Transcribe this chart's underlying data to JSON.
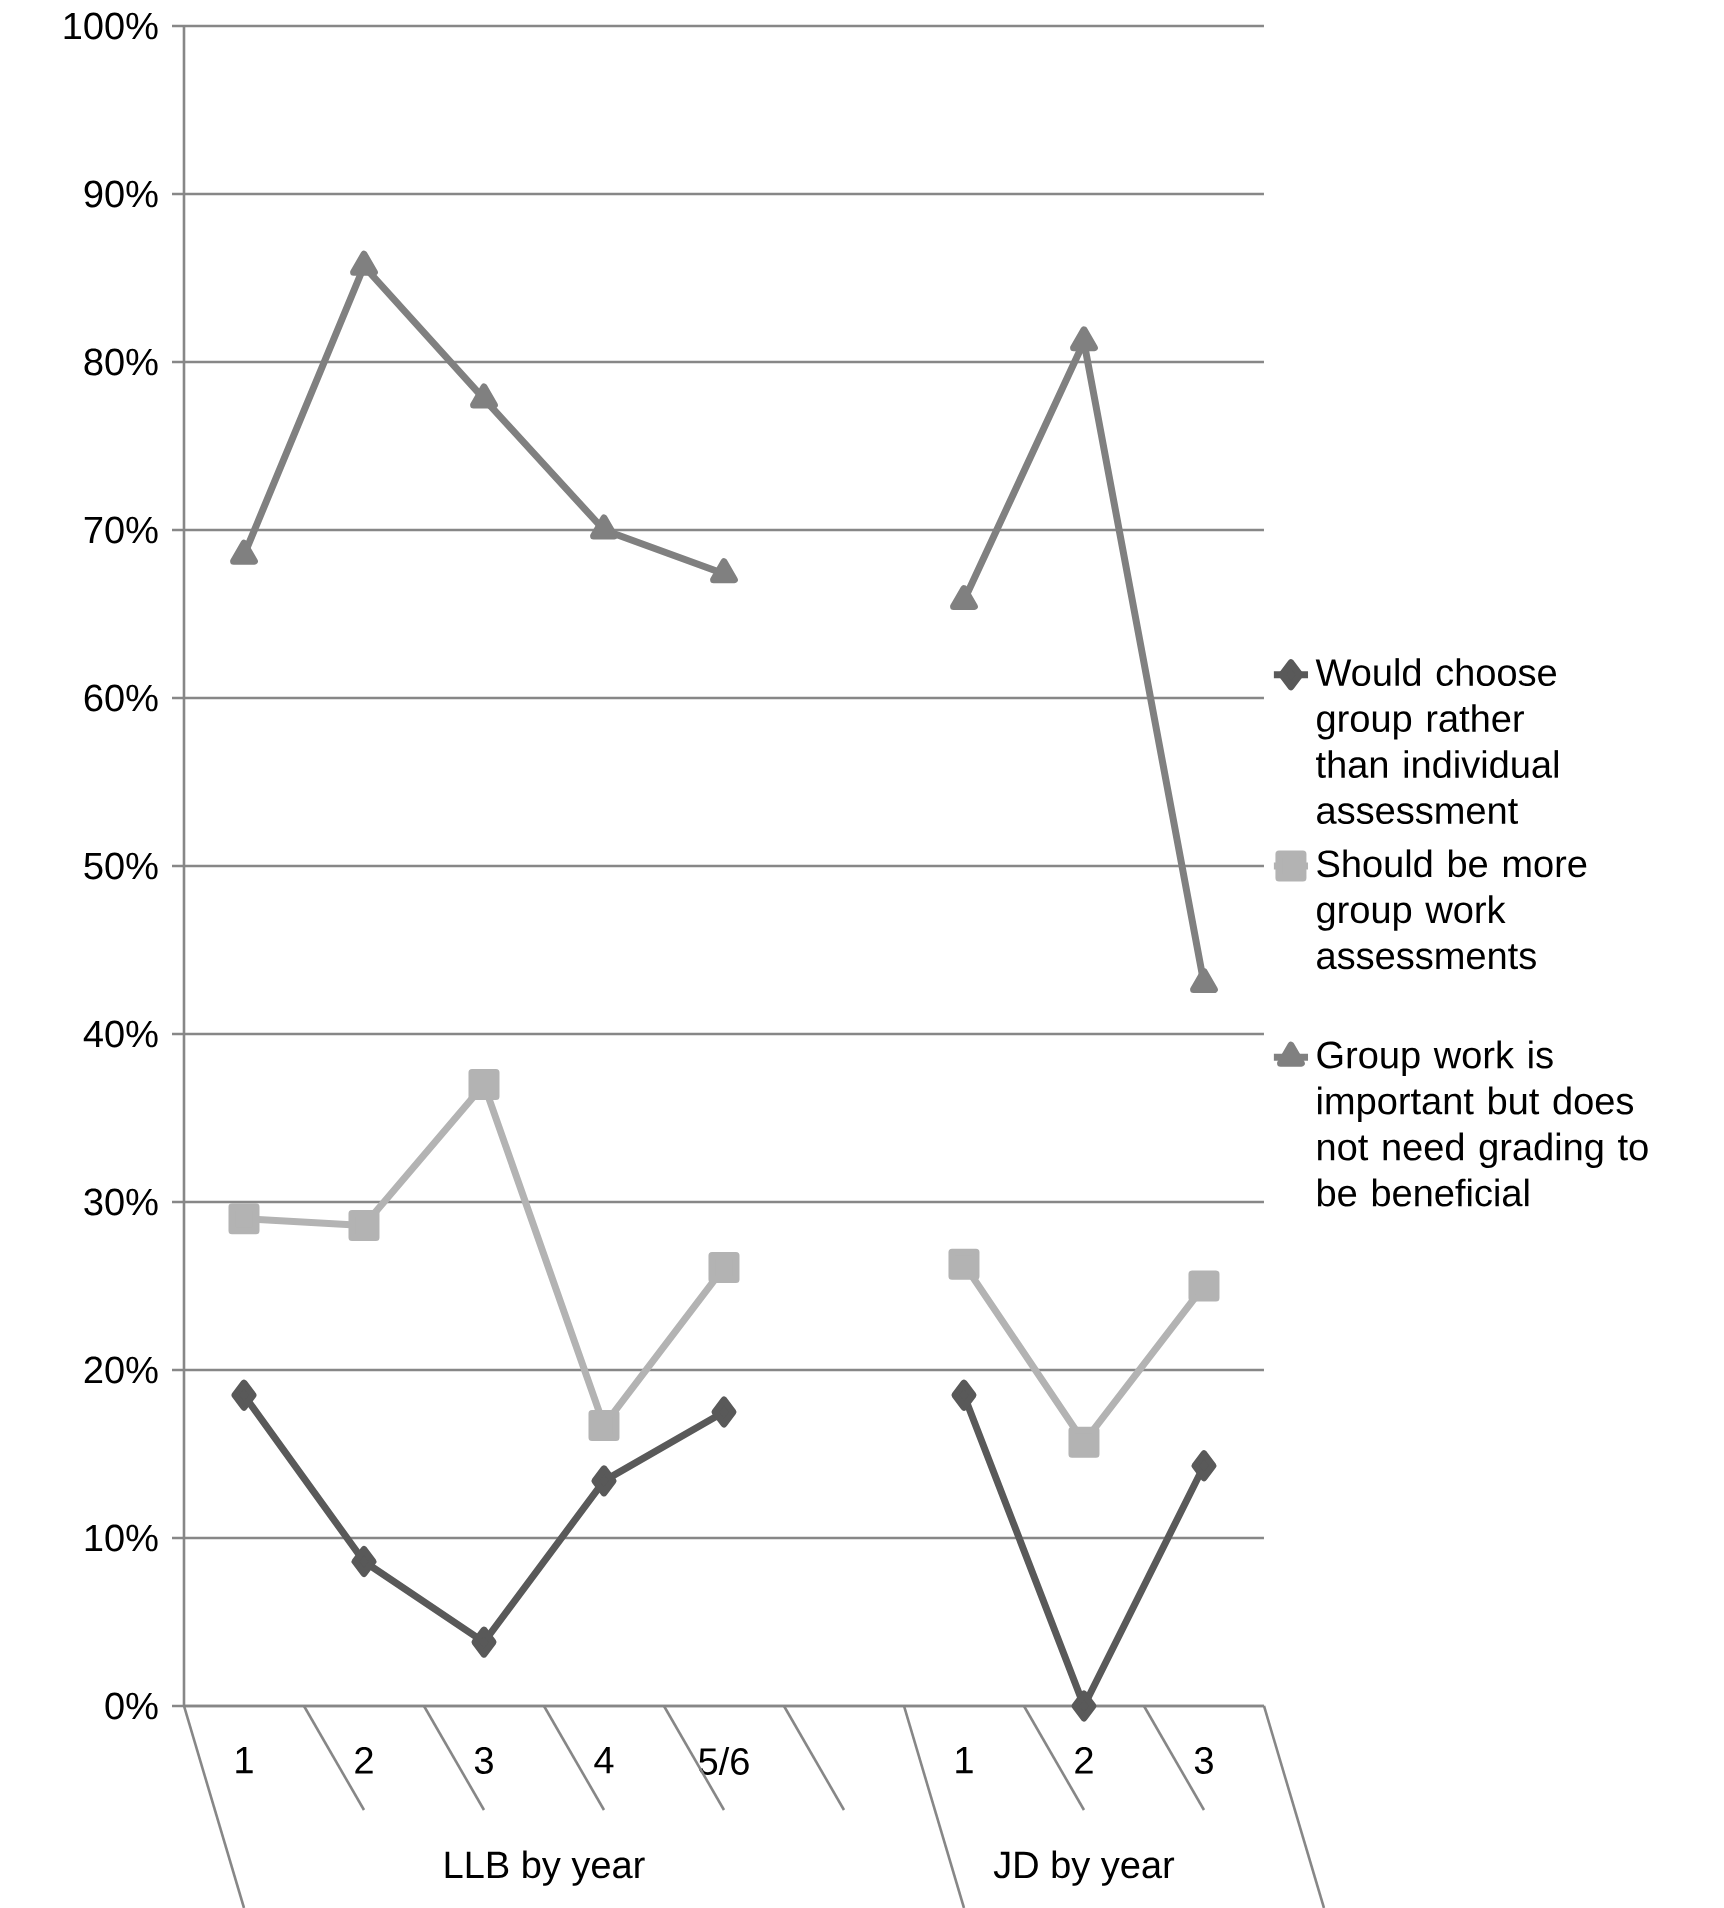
{
  "chart_data": {
    "type": "line",
    "categories": [
      "1",
      "2",
      "3",
      "4",
      "5/6",
      null,
      "1",
      "2",
      "3"
    ],
    "series": [
      {
        "name": "Would choose group rather than individual assessment",
        "color": "#595959",
        "marker": "diamond",
        "values": [
          18.5,
          8.6,
          3.8,
          13.4,
          17.5,
          null,
          18.5,
          0,
          14.3
        ]
      },
      {
        "name": "Should be more group work assessments",
        "color": "#b3b3b3",
        "marker": "square",
        "values": [
          29,
          28.6,
          37,
          16.7,
          26.1,
          null,
          26.3,
          15.7,
          25
        ]
      },
      {
        "name": "Group work is important but does not need grading to be beneficial",
        "color": "#808080",
        "marker": "triangle",
        "values": [
          68.5,
          85.7,
          77.8,
          70,
          67.4,
          null,
          65.8,
          81.2,
          43
        ]
      }
    ],
    "annotations": [
      "LLB by year",
      "JD by year"
    ],
    "ylim": [
      0,
      100
    ],
    "yticks": [
      {
        "value": 0,
        "label": "0%"
      },
      {
        "value": 10,
        "label": "10%"
      },
      {
        "value": 20,
        "label": "20%"
      },
      {
        "value": 30,
        "label": "30%"
      },
      {
        "value": 40,
        "label": "40%"
      },
      {
        "value": 50,
        "label": "50%"
      },
      {
        "value": 60,
        "label": "60%"
      },
      {
        "value": 70,
        "label": "70%"
      },
      {
        "value": 80,
        "label": "80%"
      },
      {
        "value": 90,
        "label": "90%"
      },
      {
        "value": 100,
        "label": "100%"
      }
    ],
    "grid": "y",
    "legend": "right",
    "line_style": "solid"
  }
}
